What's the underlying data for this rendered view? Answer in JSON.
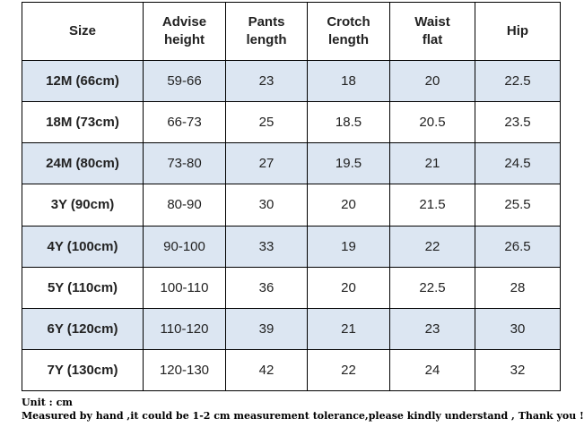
{
  "table": {
    "headers": [
      {
        "line1": "Size",
        "line2": ""
      },
      {
        "line1": "Advise",
        "line2": "height"
      },
      {
        "line1": "Pants",
        "line2": "length"
      },
      {
        "line1": "Crotch",
        "line2": "length"
      },
      {
        "line1": "Waist",
        "line2": "flat"
      },
      {
        "line1": "Hip",
        "line2": ""
      }
    ],
    "rows": [
      {
        "size": "12M (66cm)",
        "height": "59-66",
        "pants": "23",
        "crotch": "18",
        "waist": "20",
        "hip": "22.5"
      },
      {
        "size": "18M (73cm)",
        "height": "66-73",
        "pants": "25",
        "crotch": "18.5",
        "waist": "20.5",
        "hip": "23.5"
      },
      {
        "size": "24M (80cm)",
        "height": "73-80",
        "pants": "27",
        "crotch": "19.5",
        "waist": "21",
        "hip": "24.5"
      },
      {
        "size": "3Y (90cm)",
        "height": "80-90",
        "pants": "30",
        "crotch": "20",
        "waist": "21.5",
        "hip": "25.5"
      },
      {
        "size": "4Y (100cm)",
        "height": "90-100",
        "pants": "33",
        "crotch": "19",
        "waist": "22",
        "hip": "26.5"
      },
      {
        "size": "5Y (110cm)",
        "height": "100-110",
        "pants": "36",
        "crotch": "20",
        "waist": "22.5",
        "hip": "28"
      },
      {
        "size": "6Y (120cm)",
        "height": "110-120",
        "pants": "39",
        "crotch": "21",
        "waist": "23",
        "hip": "30"
      },
      {
        "size": "7Y (130cm)",
        "height": "120-130",
        "pants": "42",
        "crotch": "22",
        "waist": "24",
        "hip": "32"
      }
    ]
  },
  "notes": {
    "unit": "Unit : cm",
    "tolerance": "Measured by hand ,it could be 1-2 cm measurement tolerance,please kindly understand , Thank you !"
  },
  "colors": {
    "shaded_row": "#dce6f2",
    "border": "#000000"
  }
}
